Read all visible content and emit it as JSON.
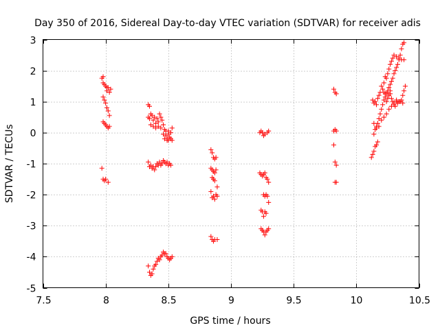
{
  "chart_data": {
    "type": "scatter",
    "title": "Day 350 of 2016, Sidereal Day-to-day VTEC variation (SDTVAR) for receiver adis",
    "xlabel": "GPS time / hours",
    "ylabel": "SDTVAR / TECUs",
    "xlim": [
      7.5,
      10.5
    ],
    "ylim": [
      -5,
      3
    ],
    "xticks": [
      7.5,
      8,
      8.5,
      9,
      9.5,
      10,
      10.5
    ],
    "xtick_labels": [
      "7.5",
      "8",
      "8.5",
      "9",
      "9.5",
      "10",
      "10.5"
    ],
    "yticks": [
      -5,
      -4,
      -3,
      -2,
      -1,
      0,
      1,
      2,
      3
    ],
    "ytick_labels": [
      "-5",
      "-4",
      "-3",
      "-2",
      "-1",
      "0",
      "1",
      "2",
      "3"
    ],
    "grid": true,
    "marker": "+",
    "marker_color": "#ff0000",
    "series": [
      {
        "name": "SDTVAR",
        "points": [
          [
            7.97,
            1.75
          ],
          [
            7.98,
            1.8
          ],
          [
            7.98,
            1.6
          ],
          [
            7.99,
            1.55
          ],
          [
            8.0,
            1.5
          ],
          [
            8.01,
            1.45
          ],
          [
            8.01,
            1.35
          ],
          [
            8.02,
            1.45
          ],
          [
            8.03,
            1.3
          ],
          [
            8.04,
            1.4
          ],
          [
            7.98,
            1.15
          ],
          [
            7.99,
            1.05
          ],
          [
            8.0,
            0.95
          ],
          [
            8.01,
            0.8
          ],
          [
            8.02,
            0.7
          ],
          [
            8.03,
            0.55
          ],
          [
            7.98,
            0.35
          ],
          [
            7.99,
            0.3
          ],
          [
            8.0,
            0.25
          ],
          [
            8.01,
            0.2
          ],
          [
            8.02,
            0.15
          ],
          [
            8.03,
            0.2
          ],
          [
            7.97,
            -1.15
          ],
          [
            7.98,
            -1.5
          ],
          [
            7.99,
            -1.55
          ],
          [
            8.0,
            -1.5
          ],
          [
            8.02,
            -1.6
          ],
          [
            8.34,
            0.9
          ],
          [
            8.35,
            0.85
          ],
          [
            8.34,
            0.5
          ],
          [
            8.35,
            0.45
          ],
          [
            8.36,
            0.6
          ],
          [
            8.37,
            0.55
          ],
          [
            8.38,
            0.4
          ],
          [
            8.39,
            0.5
          ],
          [
            8.4,
            0.3
          ],
          [
            8.41,
            0.45
          ],
          [
            8.42,
            0.35
          ],
          [
            8.43,
            0.6
          ],
          [
            8.44,
            0.5
          ],
          [
            8.45,
            0.4
          ],
          [
            8.36,
            0.25
          ],
          [
            8.38,
            0.2
          ],
          [
            8.4,
            0.15
          ],
          [
            8.42,
            0.2
          ],
          [
            8.44,
            0.15
          ],
          [
            8.46,
            0.25
          ],
          [
            8.47,
            0.1
          ],
          [
            8.46,
            -0.05
          ],
          [
            8.47,
            -0.2
          ],
          [
            8.48,
            -0.1
          ],
          [
            8.49,
            -0.2
          ],
          [
            8.5,
            -0.05
          ],
          [
            8.5,
            -0.25
          ],
          [
            8.51,
            -0.15
          ],
          [
            8.52,
            0.0
          ],
          [
            8.52,
            -0.2
          ],
          [
            8.53,
            0.15
          ],
          [
            8.53,
            -0.25
          ],
          [
            8.48,
            0.05
          ],
          [
            8.49,
            -0.25
          ],
          [
            8.5,
            0.05
          ],
          [
            8.34,
            -0.95
          ],
          [
            8.35,
            -1.1
          ],
          [
            8.36,
            -1.05
          ],
          [
            8.37,
            -1.15
          ],
          [
            8.38,
            -1.1
          ],
          [
            8.39,
            -1.2
          ],
          [
            8.4,
            -1.1
          ],
          [
            8.41,
            -1.0
          ],
          [
            8.42,
            -1.05
          ],
          [
            8.43,
            -0.95
          ],
          [
            8.44,
            -1.05
          ],
          [
            8.45,
            -1.0
          ],
          [
            8.46,
            -0.9
          ],
          [
            8.47,
            -0.95
          ],
          [
            8.48,
            -1.0
          ],
          [
            8.49,
            -0.95
          ],
          [
            8.5,
            -1.05
          ],
          [
            8.51,
            -1.0
          ],
          [
            8.52,
            -1.05
          ],
          [
            8.34,
            -4.3
          ],
          [
            8.35,
            -4.5
          ],
          [
            8.36,
            -4.6
          ],
          [
            8.37,
            -4.55
          ],
          [
            8.38,
            -4.4
          ],
          [
            8.39,
            -4.3
          ],
          [
            8.4,
            -4.25
          ],
          [
            8.41,
            -4.15
          ],
          [
            8.42,
            -4.05
          ],
          [
            8.43,
            -4.1
          ],
          [
            8.44,
            -4.0
          ],
          [
            8.45,
            -3.95
          ],
          [
            8.46,
            -3.85
          ],
          [
            8.47,
            -3.9
          ],
          [
            8.48,
            -3.9
          ],
          [
            8.49,
            -4.0
          ],
          [
            8.5,
            -4.05
          ],
          [
            8.51,
            -4.1
          ],
          [
            8.52,
            -4.05
          ],
          [
            8.53,
            -4.0
          ],
          [
            8.84,
            -0.55
          ],
          [
            8.85,
            -0.65
          ],
          [
            8.86,
            -0.8
          ],
          [
            8.87,
            -0.85
          ],
          [
            8.88,
            -0.8
          ],
          [
            8.84,
            -1.15
          ],
          [
            8.85,
            -1.2
          ],
          [
            8.86,
            -1.25
          ],
          [
            8.87,
            -1.3
          ],
          [
            8.88,
            -1.2
          ],
          [
            8.85,
            -1.45
          ],
          [
            8.86,
            -1.5
          ],
          [
            8.87,
            -1.55
          ],
          [
            8.89,
            -1.75
          ],
          [
            8.84,
            -1.9
          ],
          [
            8.85,
            -2.1
          ],
          [
            8.86,
            -2.05
          ],
          [
            8.87,
            -2.15
          ],
          [
            8.88,
            -2.0
          ],
          [
            8.89,
            -2.05
          ],
          [
            8.84,
            -3.35
          ],
          [
            8.85,
            -3.45
          ],
          [
            8.86,
            -3.5
          ],
          [
            8.87,
            -3.45
          ],
          [
            8.89,
            -3.45
          ],
          [
            9.23,
            0.0
          ],
          [
            9.24,
            0.05
          ],
          [
            9.25,
            0.0
          ],
          [
            9.26,
            -0.1
          ],
          [
            9.27,
            -0.05
          ],
          [
            9.29,
            0.0
          ],
          [
            9.3,
            0.05
          ],
          [
            9.23,
            -1.3
          ],
          [
            9.24,
            -1.35
          ],
          [
            9.25,
            -1.4
          ],
          [
            9.26,
            -1.35
          ],
          [
            9.27,
            -1.3
          ],
          [
            9.28,
            -1.45
          ],
          [
            9.29,
            -1.5
          ],
          [
            9.3,
            -1.6
          ],
          [
            9.26,
            -2.0
          ],
          [
            9.27,
            -2.05
          ],
          [
            9.28,
            -2.0
          ],
          [
            9.29,
            -2.05
          ],
          [
            9.3,
            -2.25
          ],
          [
            9.24,
            -2.5
          ],
          [
            9.25,
            -2.55
          ],
          [
            9.26,
            -2.7
          ],
          [
            9.27,
            -2.55
          ],
          [
            9.28,
            -2.6
          ],
          [
            9.24,
            -3.1
          ],
          [
            9.25,
            -3.15
          ],
          [
            9.26,
            -3.2
          ],
          [
            9.27,
            -3.3
          ],
          [
            9.28,
            -3.2
          ],
          [
            9.29,
            -3.15
          ],
          [
            9.3,
            -3.1
          ],
          [
            9.82,
            1.4
          ],
          [
            9.83,
            1.3
          ],
          [
            9.84,
            1.25
          ],
          [
            9.82,
            0.05
          ],
          [
            9.83,
            0.1
          ],
          [
            9.84,
            0.05
          ],
          [
            9.82,
            -0.4
          ],
          [
            9.83,
            -0.95
          ],
          [
            9.84,
            -1.05
          ],
          [
            9.83,
            -1.6
          ],
          [
            9.84,
            -1.6
          ],
          [
            10.12,
            -0.8
          ],
          [
            10.13,
            -0.7
          ],
          [
            10.14,
            -0.6
          ],
          [
            10.15,
            -0.45
          ],
          [
            10.16,
            -0.4
          ],
          [
            10.17,
            -0.3
          ],
          [
            10.14,
            -0.05
          ],
          [
            10.15,
            0.1
          ],
          [
            10.16,
            0.2
          ],
          [
            10.17,
            0.3
          ],
          [
            10.18,
            0.45
          ],
          [
            10.19,
            0.6
          ],
          [
            10.2,
            0.75
          ],
          [
            10.21,
            0.9
          ],
          [
            10.22,
            1.05
          ],
          [
            10.23,
            1.15
          ],
          [
            10.24,
            1.25
          ],
          [
            10.25,
            1.35
          ],
          [
            10.26,
            1.45
          ],
          [
            10.27,
            1.55
          ],
          [
            10.28,
            1.65
          ],
          [
            10.29,
            1.75
          ],
          [
            10.3,
            1.9
          ],
          [
            10.31,
            2.0
          ],
          [
            10.32,
            2.1
          ],
          [
            10.33,
            2.2
          ],
          [
            10.34,
            2.35
          ],
          [
            10.35,
            2.5
          ],
          [
            10.36,
            2.7
          ],
          [
            10.37,
            2.85
          ],
          [
            10.38,
            2.9
          ],
          [
            10.13,
            1.05
          ],
          [
            10.14,
            0.95
          ],
          [
            10.15,
            1.0
          ],
          [
            10.16,
            0.9
          ],
          [
            10.17,
            1.1
          ],
          [
            10.18,
            1.2
          ],
          [
            10.19,
            1.3
          ],
          [
            10.2,
            1.5
          ],
          [
            10.21,
            1.4
          ],
          [
            10.22,
            1.6
          ],
          [
            10.23,
            1.8
          ],
          [
            10.24,
            1.75
          ],
          [
            10.25,
            1.9
          ],
          [
            10.26,
            2.05
          ],
          [
            10.27,
            2.2
          ],
          [
            10.28,
            2.3
          ],
          [
            10.29,
            2.4
          ],
          [
            10.3,
            2.5
          ],
          [
            10.32,
            2.45
          ],
          [
            10.34,
            2.4
          ],
          [
            10.36,
            2.35
          ],
          [
            10.38,
            2.35
          ],
          [
            10.14,
            0.3
          ],
          [
            10.16,
            0.15
          ],
          [
            10.18,
            0.2
          ],
          [
            10.2,
            0.4
          ],
          [
            10.22,
            0.5
          ],
          [
            10.24,
            0.6
          ],
          [
            10.26,
            0.75
          ],
          [
            10.28,
            0.85
          ],
          [
            10.3,
            0.95
          ],
          [
            10.32,
            1.0
          ],
          [
            10.34,
            1.0
          ],
          [
            10.36,
            1.05
          ],
          [
            10.37,
            1.2
          ],
          [
            10.38,
            1.35
          ],
          [
            10.39,
            1.5
          ],
          [
            10.24,
            1.0
          ],
          [
            10.25,
            1.1
          ],
          [
            10.26,
            1.2
          ],
          [
            10.27,
            1.25
          ],
          [
            10.28,
            1.1
          ],
          [
            10.29,
            1.0
          ],
          [
            10.3,
            0.9
          ],
          [
            10.31,
            0.85
          ],
          [
            10.32,
            1.05
          ],
          [
            10.33,
            0.95
          ],
          [
            10.35,
            1.0
          ],
          [
            10.37,
            0.95
          ],
          [
            10.22,
            1.3
          ],
          [
            10.23,
            1.25
          ],
          [
            10.25,
            1.3
          ],
          [
            10.27,
            1.35
          ]
        ]
      }
    ]
  }
}
